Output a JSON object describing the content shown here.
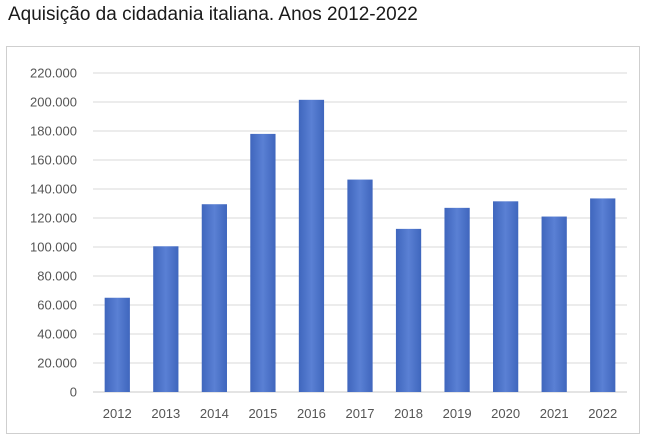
{
  "title": "Aquisição da cidadania italiana. Anos 2012-2022",
  "colors": {
    "bar": "#4a72c8",
    "bar_dark": "#3c63b8",
    "grid": "#d9d9d9",
    "axis": "#c8c8c8"
  },
  "chart_data": {
    "type": "bar",
    "title": "Aquisição da cidadania italiana. Anos 2012-2022",
    "xlabel": "",
    "ylabel": "",
    "categories": [
      "2012",
      "2013",
      "2014",
      "2015",
      "2016",
      "2017",
      "2018",
      "2019",
      "2020",
      "2021",
      "2022"
    ],
    "values": [
      65000,
      100500,
      129500,
      178000,
      201500,
      146500,
      112500,
      127000,
      131500,
      121000,
      133500
    ],
    "ylim": [
      0,
      220000
    ],
    "yticks": [
      0,
      20000,
      40000,
      60000,
      80000,
      100000,
      120000,
      140000,
      160000,
      180000,
      200000,
      220000
    ],
    "ytick_labels": [
      "0",
      "20.000",
      "40.000",
      "60.000",
      "80.000",
      "100.000",
      "120.000",
      "140.000",
      "160.000",
      "180.000",
      "200.000",
      "220.000"
    ],
    "grid": true,
    "legend": "none"
  }
}
